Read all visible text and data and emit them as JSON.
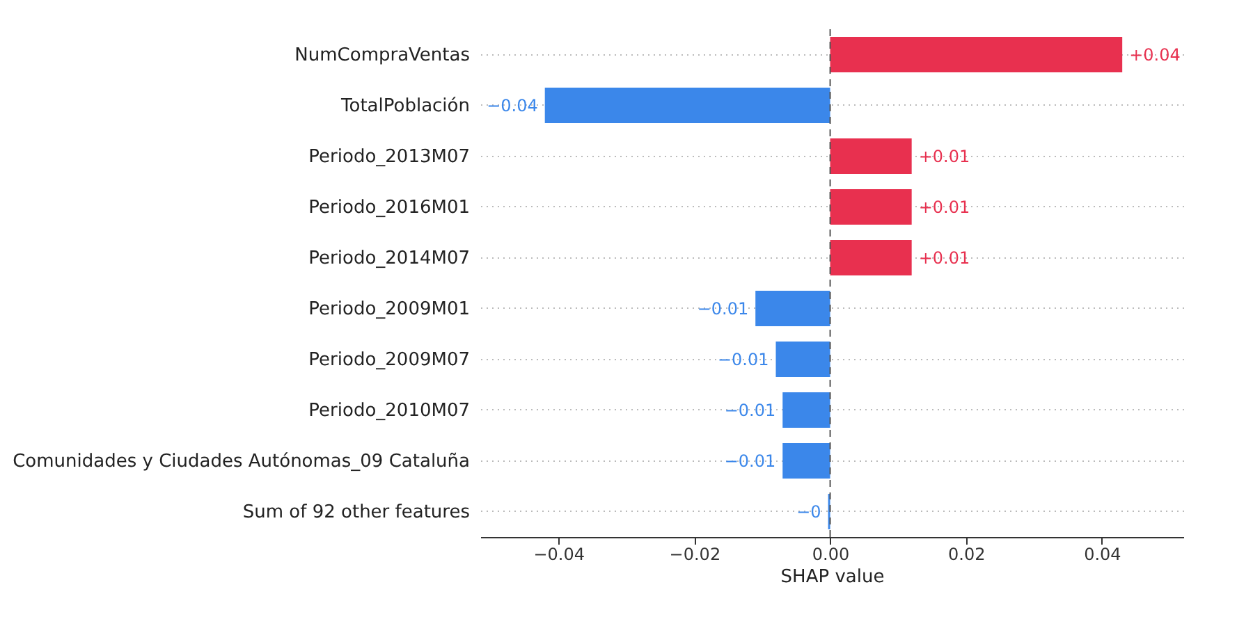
{
  "chart_data": {
    "type": "bar",
    "orientation": "horizontal",
    "categories": [
      "NumCompraVentas",
      "TotalPoblación",
      "Periodo_2013M07",
      "Periodo_2016M01",
      "Periodo_2014M07",
      "Periodo_2009M01",
      "Periodo_2009M07",
      "Periodo_2010M07",
      "Comunidades y Ciudades Autónomas_09 Cataluña",
      "Sum of 92 other features"
    ],
    "values": [
      0.043,
      -0.042,
      0.012,
      0.012,
      0.012,
      -0.011,
      -0.008,
      -0.007,
      -0.007,
      -0.0003
    ],
    "colors": [
      "#e8304f",
      "#3b87ea",
      "#e8304f",
      "#e8304f",
      "#e8304f",
      "#3b87ea",
      "#3b87ea",
      "#3b87ea",
      "#3b87ea",
      "#3b87ea"
    ],
    "value_labels": [
      "+0.04",
      "−0.04",
      "+0.01",
      "+0.01",
      "+0.01",
      "−0.01",
      "−0.01",
      "−0.01",
      "−0.01",
      "−0"
    ],
    "xlabel": "SHAP value",
    "xlim": [
      -0.0515,
      0.052
    ],
    "xticks": [
      {
        "value": -0.04,
        "label": "−0.04"
      },
      {
        "value": -0.02,
        "label": "−0.02"
      },
      {
        "value": 0,
        "label": "0.00"
      },
      {
        "value": 0.02,
        "label": "0.02"
      },
      {
        "value": 0.04,
        "label": "0.04"
      }
    ],
    "grid": "y",
    "ref_lines": [
      {
        "axis": "x",
        "value": 0,
        "color": "#555555",
        "line_style": "dashed"
      }
    ]
  }
}
